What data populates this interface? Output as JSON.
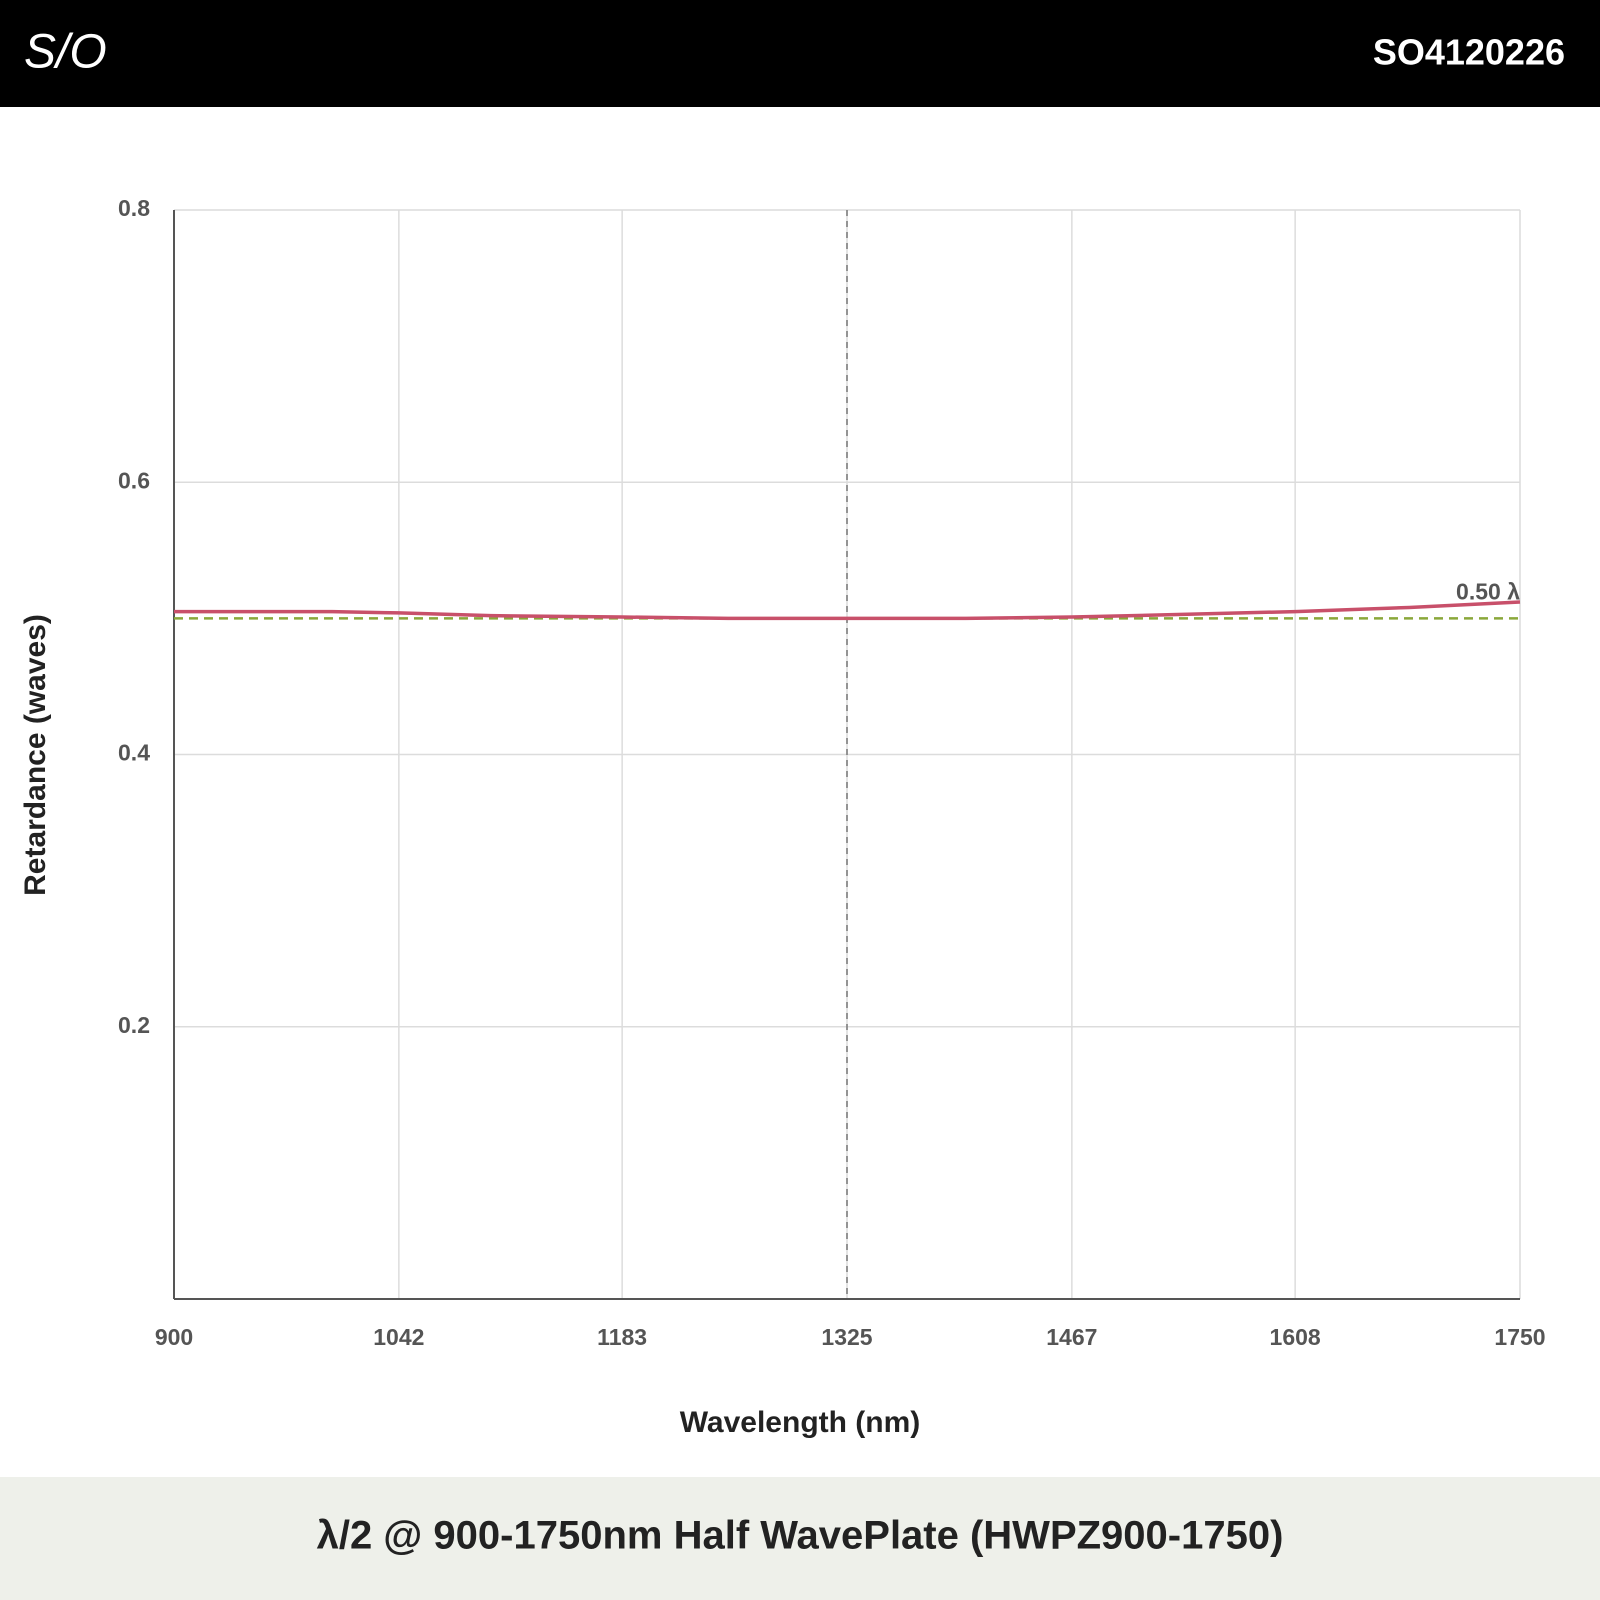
{
  "header": {
    "logo": "S/O",
    "code": "SO4120226"
  },
  "chart_data": {
    "type": "line",
    "title": "λ/2 @ 900-1750nm Half WavePlate (HWPZ900-1750)",
    "x_label": "Wavelength (nm)",
    "y_label": "Retardance (waves)",
    "x": [
      900,
      950,
      1000,
      1042,
      1100,
      1183,
      1250,
      1325,
      1400,
      1467,
      1540,
      1608,
      1680,
      1750
    ],
    "series": [
      {
        "name": "Retardance",
        "color": "#c8506a",
        "values": [
          0.505,
          0.505,
          0.505,
          0.504,
          0.502,
          0.501,
          0.5,
          0.5,
          0.5,
          0.501,
          0.503,
          0.505,
          0.508,
          0.512
        ]
      }
    ],
    "reference_line": {
      "value": 0.5,
      "label": "0.50 λ",
      "color": "#8aa83a"
    },
    "center_line": 1325,
    "xlim": [
      900,
      1750
    ],
    "xticks": [
      900,
      1042,
      1183,
      1325,
      1467,
      1608,
      1750
    ],
    "ylim": [
      0,
      0.8
    ],
    "yticks": [
      0.2,
      0.4,
      0.6,
      0.8
    ],
    "grid": true
  }
}
